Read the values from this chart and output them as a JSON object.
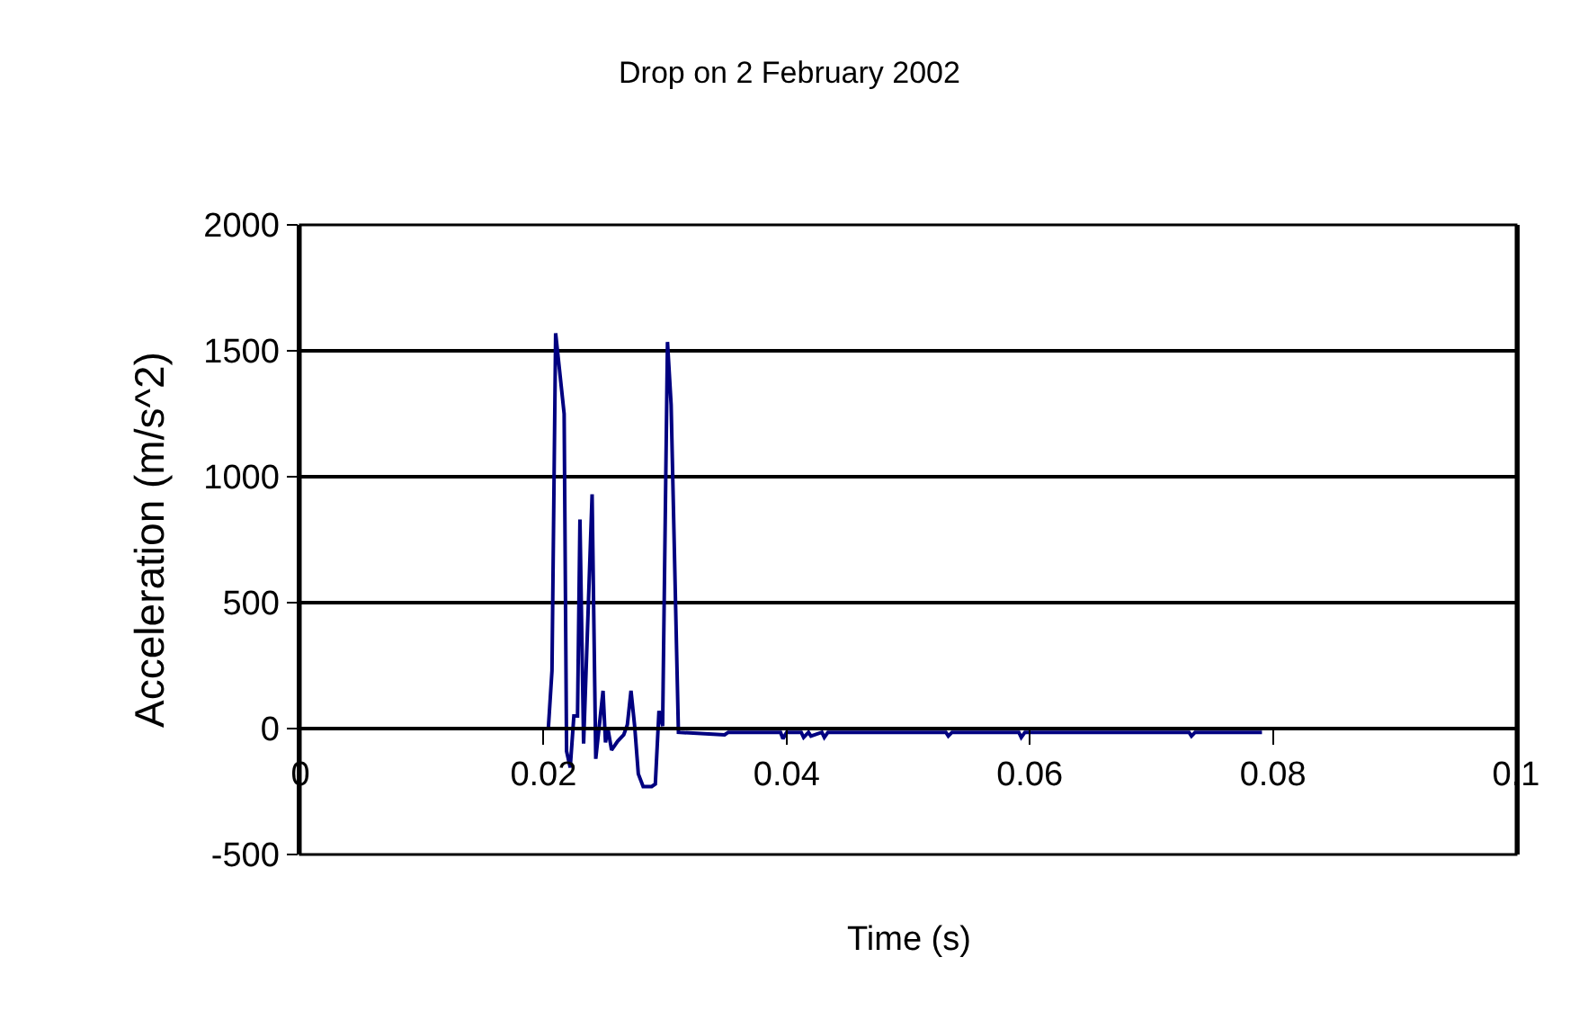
{
  "chart_data": {
    "type": "line",
    "title": "Drop on 2 February 2002",
    "xlabel": "Time (s)",
    "ylabel": "Acceleration (m/s^2)",
    "series": [
      {
        "color": "#000080",
        "x": [
          0,
          0.0204,
          0.0207,
          0.021,
          0.0217,
          0.0219,
          0.0222,
          0.0225,
          0.0228,
          0.023,
          0.0233,
          0.024,
          0.0243,
          0.0249,
          0.0251,
          0.0253,
          0.0256,
          0.0261,
          0.0266,
          0.0269,
          0.0272,
          0.0275,
          0.0278,
          0.0282,
          0.0289,
          0.0292,
          0.0295,
          0.0298,
          0.0302,
          0.0305,
          0.0311,
          0.0349,
          0.0352,
          0.0395,
          0.0397,
          0.04,
          0.0412,
          0.0414,
          0.0418,
          0.042,
          0.0429,
          0.0431,
          0.0434,
          0.0531,
          0.0533,
          0.0536,
          0.0591,
          0.0593,
          0.0596,
          0.0731,
          0.0733,
          0.0736,
          0.0791
        ],
        "values": [
          0,
          0,
          230,
          1570,
          1250,
          -90,
          -155,
          50,
          50,
          830,
          -60,
          930,
          -120,
          150,
          -55,
          0,
          -85,
          -50,
          -25,
          15,
          150,
          10,
          -180,
          -230,
          -230,
          -220,
          70,
          10,
          1535,
          1285,
          -15,
          -25,
          -15,
          -15,
          -40,
          -15,
          -15,
          -35,
          -15,
          -30,
          -15,
          -35,
          -15,
          -15,
          -30,
          -15,
          -15,
          -35,
          -15,
          -15,
          -30,
          -15,
          -15
        ]
      }
    ],
    "xlim": [
      0,
      0.1
    ],
    "xticks": [
      0,
      0.02,
      0.04,
      0.06,
      0.08,
      0.1
    ],
    "ylim": [
      -500,
      2000
    ],
    "yticks": [
      -500,
      0,
      500,
      1000,
      1500,
      2000
    ],
    "grid": "y",
    "legend": false,
    "marker": "none",
    "line_style": "solid"
  }
}
